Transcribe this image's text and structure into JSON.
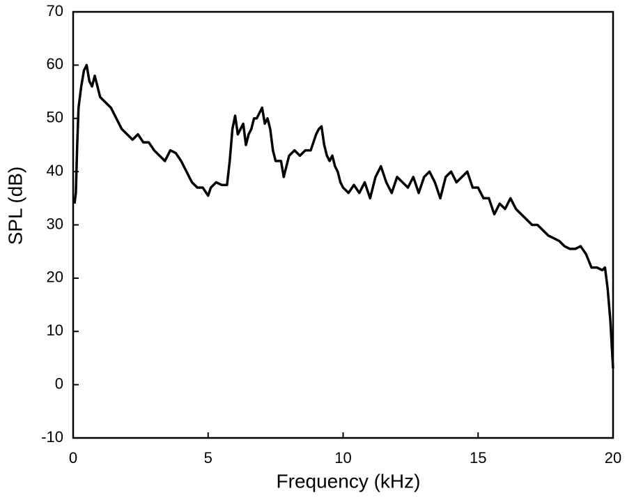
{
  "chart_data": {
    "type": "line",
    "xlabel": "Frequency  (kHz)",
    "ylabel": "SPL  (dB)",
    "xlim": [
      0,
      20
    ],
    "ylim": [
      -10,
      70
    ],
    "xticks": [
      0,
      5,
      10,
      15,
      20
    ],
    "yticks": [
      -10,
      0,
      10,
      20,
      30,
      40,
      50,
      60,
      70
    ],
    "x": [
      0.05,
      0.1,
      0.15,
      0.2,
      0.3,
      0.4,
      0.5,
      0.6,
      0.7,
      0.8,
      0.9,
      1.0,
      1.2,
      1.4,
      1.6,
      1.8,
      2.0,
      2.2,
      2.4,
      2.6,
      2.8,
      3.0,
      3.2,
      3.4,
      3.6,
      3.8,
      4.0,
      4.2,
      4.4,
      4.6,
      4.8,
      5.0,
      5.1,
      5.3,
      5.5,
      5.7,
      5.8,
      5.9,
      6.0,
      6.1,
      6.2,
      6.3,
      6.4,
      6.5,
      6.6,
      6.7,
      6.8,
      6.9,
      7.0,
      7.1,
      7.2,
      7.3,
      7.4,
      7.5,
      7.6,
      7.7,
      7.8,
      7.9,
      8.0,
      8.2,
      8.4,
      8.6,
      8.8,
      9.0,
      9.1,
      9.2,
      9.3,
      9.4,
      9.5,
      9.6,
      9.7,
      9.8,
      9.9,
      10.0,
      10.2,
      10.4,
      10.6,
      10.8,
      11.0,
      11.2,
      11.4,
      11.6,
      11.8,
      12.0,
      12.2,
      12.4,
      12.6,
      12.8,
      13.0,
      13.2,
      13.4,
      13.6,
      13.8,
      14.0,
      14.2,
      14.4,
      14.6,
      14.8,
      15.0,
      15.2,
      15.4,
      15.6,
      15.8,
      16.0,
      16.2,
      16.4,
      16.6,
      16.8,
      17.0,
      17.2,
      17.4,
      17.6,
      17.8,
      18.0,
      18.2,
      18.4,
      18.6,
      18.8,
      19.0,
      19.2,
      19.4,
      19.6,
      19.7,
      19.8,
      19.9,
      20.0
    ],
    "series": [
      {
        "color": "#000000",
        "values": [
          34,
          36,
          45,
          52,
          56,
          59,
          60,
          57,
          56,
          58,
          56,
          54,
          53,
          52,
          50,
          48,
          47,
          46,
          47,
          45.5,
          45.5,
          44,
          43,
          42,
          44,
          43.5,
          42,
          40,
          38,
          37,
          37,
          35.5,
          37,
          38,
          37.5,
          37.5,
          42,
          48,
          50.5,
          47,
          48,
          49,
          45,
          47,
          48,
          50,
          50,
          51,
          52,
          49,
          50,
          48,
          44,
          42,
          42,
          42,
          39,
          41,
          43,
          44,
          43,
          44,
          44,
          47,
          48,
          48.5,
          45,
          43,
          42,
          43,
          41,
          40,
          38,
          37,
          36,
          37.5,
          36,
          38,
          35,
          39,
          41,
          38,
          36,
          39,
          38,
          37,
          39,
          36,
          39,
          40,
          38,
          35,
          39,
          40,
          38,
          39,
          40,
          37,
          37,
          35,
          35,
          32,
          34,
          33,
          35,
          33,
          32,
          31,
          30,
          30,
          29,
          28,
          27.5,
          27,
          26,
          25.5,
          25.5,
          26,
          24.5,
          22,
          22,
          21.5,
          22,
          18,
          12,
          3
        ]
      }
    ]
  }
}
